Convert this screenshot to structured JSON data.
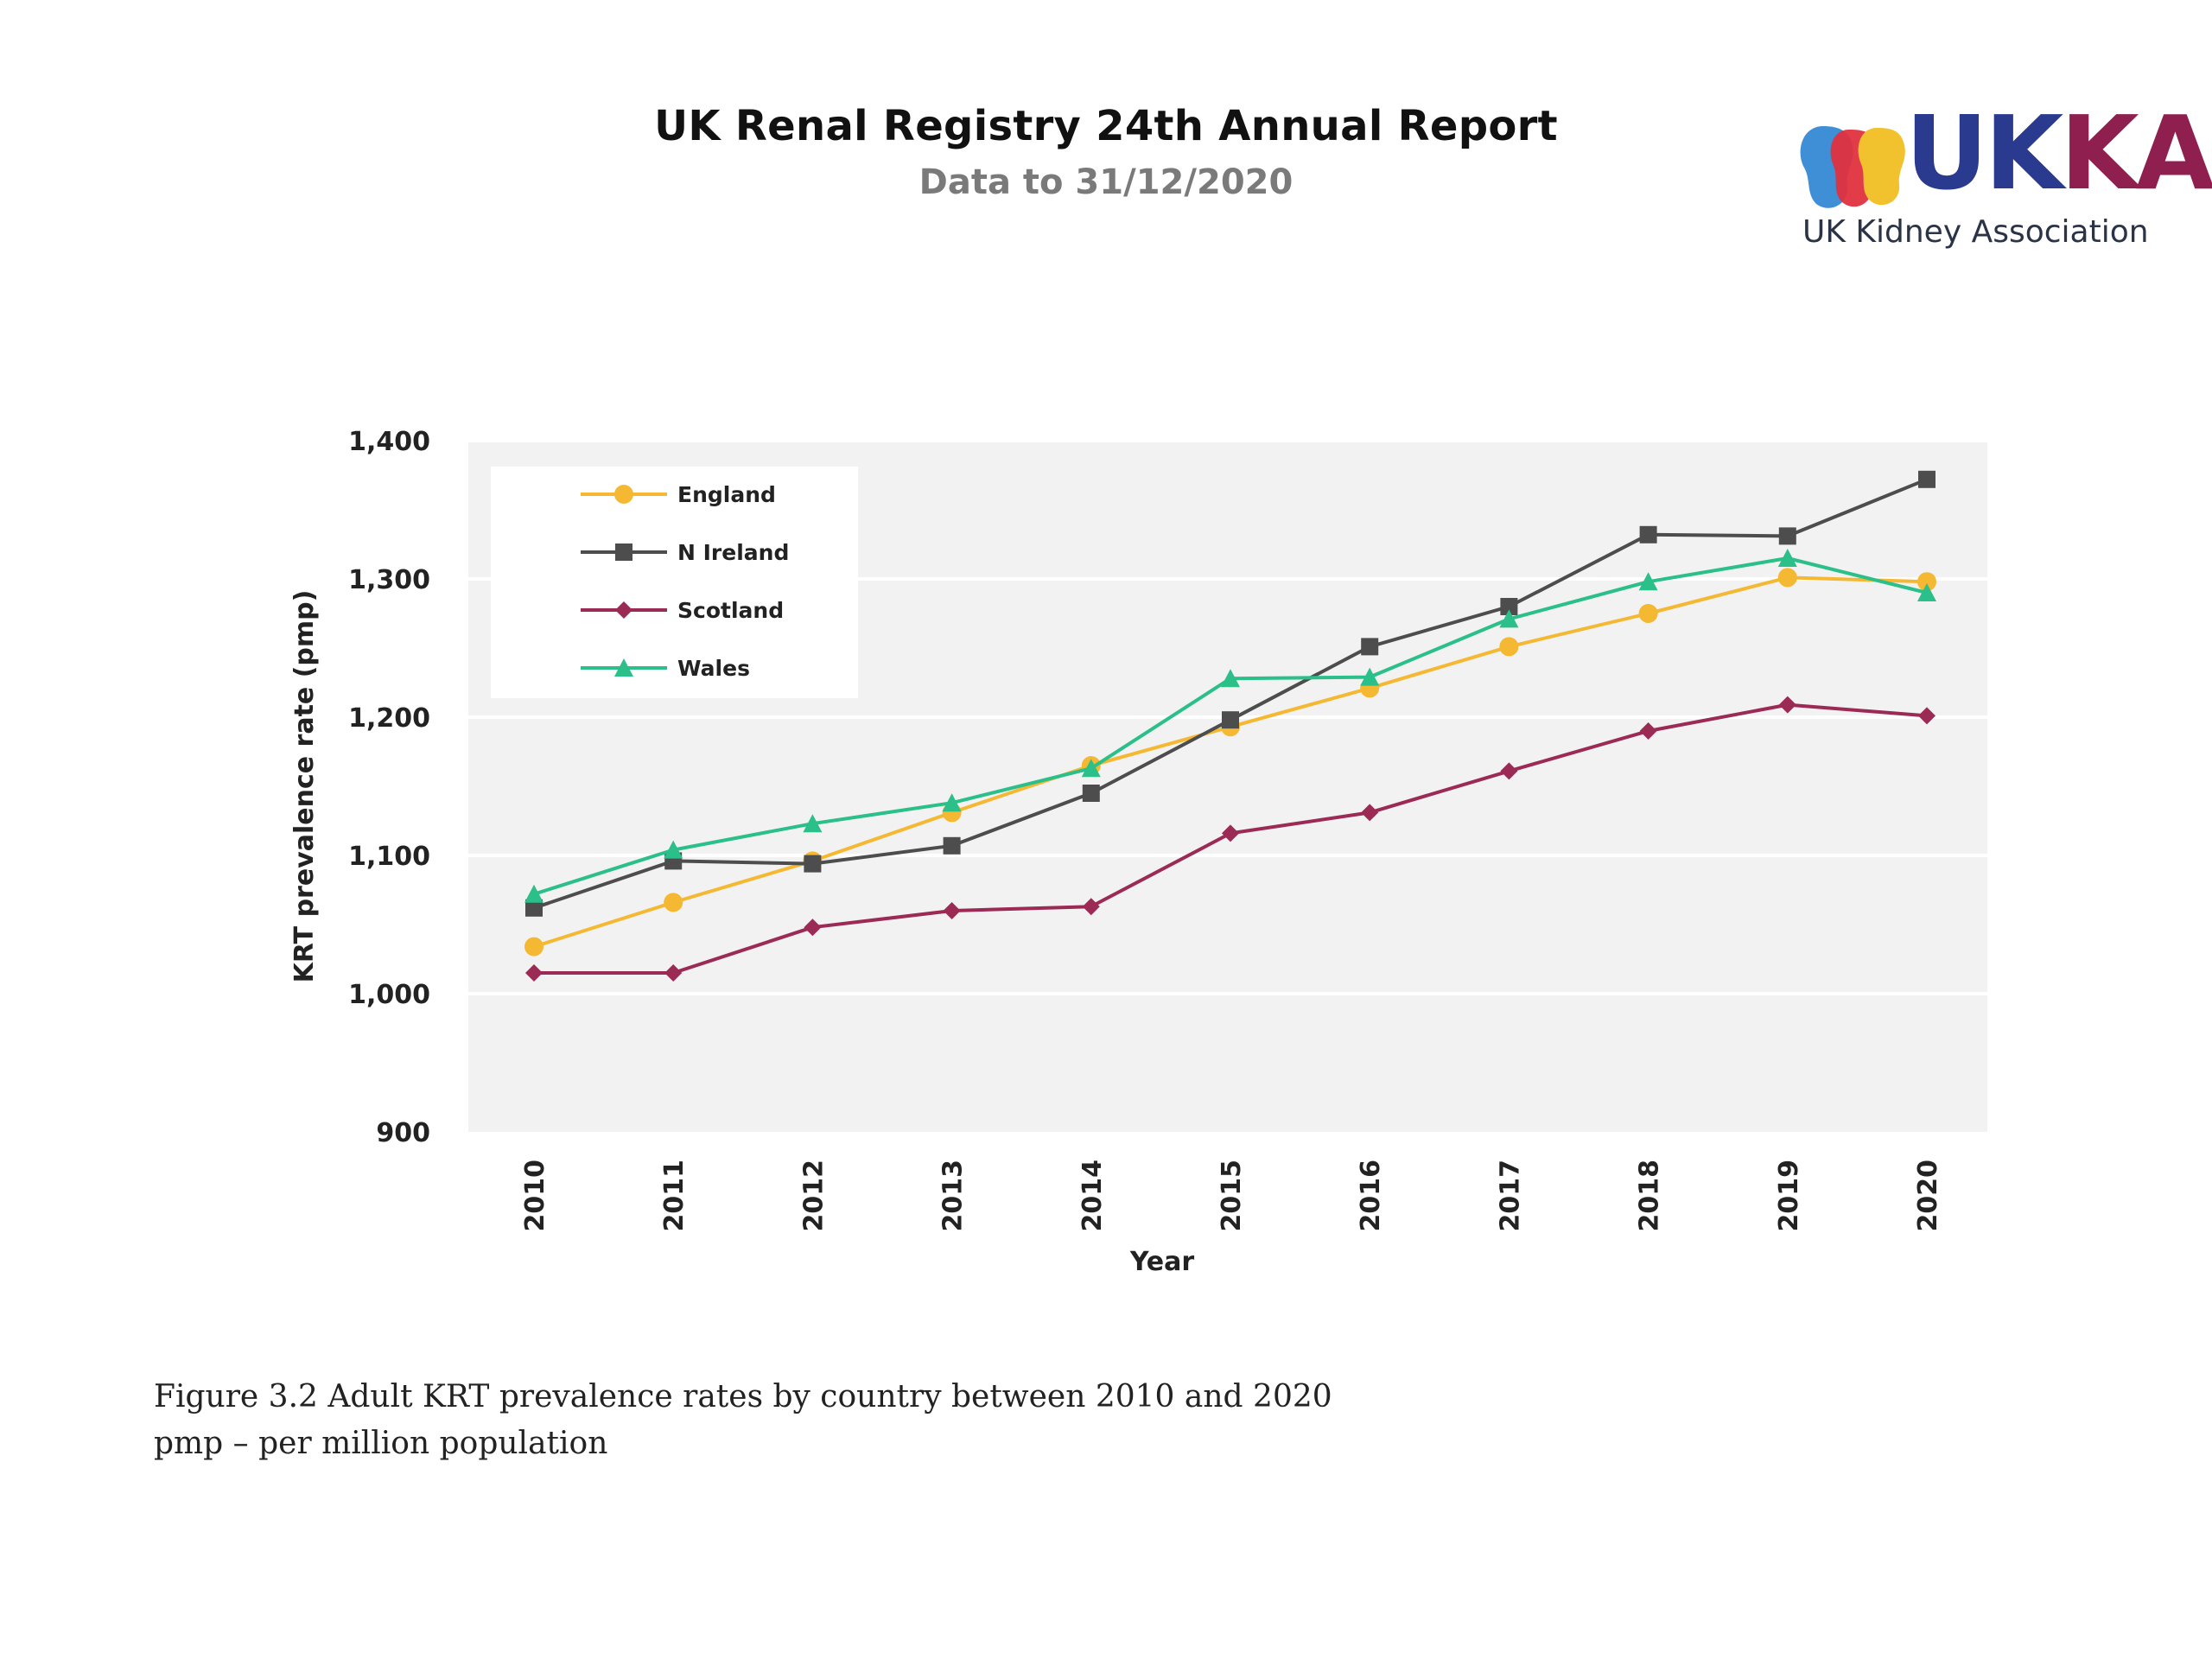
{
  "header": {
    "title": "UK Renal Registry 24th Annual Report",
    "subtitle": "Data to 31/12/2020"
  },
  "logo": {
    "wordmark_part1": "UK",
    "wordmark_part2": "KA",
    "tagline": "UK Kidney Association",
    "colors": {
      "blue": "#2a3a8f",
      "maroon": "#8e1f4f",
      "yellow": "#f2c12e",
      "red": "#e0323f",
      "lightblue": "#3f8fd6"
    }
  },
  "chart_data": {
    "type": "line",
    "xlabel": "Year",
    "ylabel": "KRT prevalence rate (pmp)",
    "ylim": [
      900,
      1400
    ],
    "yticks": [
      900,
      1000,
      1100,
      1200,
      1300,
      1400
    ],
    "ytick_labels": [
      "900",
      "1,000",
      "1,100",
      "1,200",
      "1,300",
      "1,400"
    ],
    "grid": "horizontal",
    "legend_position": "top-left",
    "x": [
      "2010",
      "2011",
      "2012",
      "2013",
      "2014",
      "2015",
      "2016",
      "2017",
      "2018",
      "2019",
      "2020"
    ],
    "series": [
      {
        "name": "England",
        "color": "#f5b833",
        "marker": "circle",
        "values": [
          1034,
          1066,
          1096,
          1131,
          1165,
          1193,
          1221,
          1251,
          1275,
          1301,
          1298
        ]
      },
      {
        "name": "N Ireland",
        "color": "#4d4d4d",
        "marker": "square",
        "values": [
          1062,
          1096,
          1094,
          1107,
          1145,
          1198,
          1251,
          1280,
          1332,
          1331,
          1372
        ]
      },
      {
        "name": "Scotland",
        "color": "#9b2a55",
        "marker": "diamond",
        "values": [
          1015,
          1015,
          1048,
          1060,
          1063,
          1116,
          1131,
          1161,
          1190,
          1209,
          1201
        ]
      },
      {
        "name": "Wales",
        "color": "#2bbf8a",
        "marker": "triangle",
        "values": [
          1072,
          1104,
          1123,
          1138,
          1163,
          1228,
          1229,
          1271,
          1298,
          1315,
          1290
        ]
      }
    ]
  },
  "caption": {
    "line1": "Figure 3.2 Adult KRT prevalence rates by country between 2010 and 2020",
    "line2": "pmp – per million population"
  }
}
